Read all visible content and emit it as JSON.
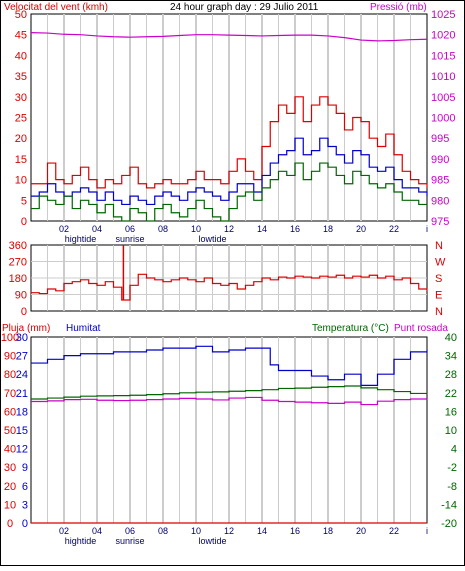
{
  "header": {
    "wind_label": "Velocitat del vent (kmh)",
    "title": "24 hour graph day : 29 Julio 2011",
    "pressure_label": "Pressió (mb)"
  },
  "colors": {
    "red": "#dd0000",
    "blue": "#0000cc",
    "green": "#006600",
    "magenta": "#cc00cc",
    "grid": "#cccccc"
  },
  "chart_data": [
    {
      "type": "line",
      "panel": "wind-pressure",
      "title": "24 hour graph day : 29 Julio 2011",
      "x_ticks": [
        "02",
        "04",
        "06",
        "08",
        "10",
        "12",
        "14",
        "16",
        "18",
        "20",
        "22",
        "i"
      ],
      "x_annotations": [
        {
          "x": 3,
          "label": "hightide"
        },
        {
          "x": 6,
          "label": "sunrise"
        },
        {
          "x": 11,
          "label": "lowtide"
        }
      ],
      "xlim": [
        0,
        24
      ],
      "left_axis": {
        "label": "Velocitat del vent (kmh)",
        "ylim": [
          0,
          50
        ],
        "ticks": [
          0,
          5,
          10,
          15,
          20,
          25,
          30,
          35,
          40,
          45,
          50
        ]
      },
      "right_axis": {
        "label": "Pressió (mb)",
        "ylim": [
          975,
          1025
        ],
        "ticks": [
          975,
          980,
          985,
          990,
          995,
          1000,
          1005,
          1010,
          1015,
          1020,
          1025
        ]
      },
      "series": [
        {
          "color": "#dd0000",
          "axis": "left",
          "x": [
            0,
            0.5,
            1,
            1.5,
            2,
            2.5,
            3,
            3.5,
            4,
            4.5,
            5,
            5.5,
            6,
            6.5,
            7,
            7.5,
            8,
            8.5,
            9,
            9.5,
            10,
            10.5,
            11,
            11.5,
            12,
            12.5,
            13,
            13.5,
            14,
            14.5,
            15,
            15.5,
            16,
            16.5,
            17,
            17.5,
            18,
            18.5,
            19,
            19.5,
            20,
            20.5,
            21,
            21.5,
            22,
            22.5,
            23,
            23.5,
            24
          ],
          "values": [
            9,
            9,
            14,
            10,
            9,
            11,
            13,
            10,
            8,
            10,
            9,
            11,
            13,
            9,
            8,
            9,
            10,
            9,
            9,
            10,
            12,
            10,
            10,
            9,
            12,
            15,
            12,
            10,
            18,
            24,
            28,
            26,
            30,
            24,
            28,
            30,
            28,
            26,
            22,
            25,
            24,
            20,
            18,
            21,
            16,
            12,
            10,
            9,
            8
          ]
        },
        {
          "color": "#0000cc",
          "axis": "left",
          "x": [
            0,
            0.5,
            1,
            1.5,
            2,
            2.5,
            3,
            3.5,
            4,
            4.5,
            5,
            5.5,
            6,
            6.5,
            7,
            7.5,
            8,
            8.5,
            9,
            9.5,
            10,
            10.5,
            11,
            11.5,
            12,
            12.5,
            13,
            13.5,
            14,
            14.5,
            15,
            15.5,
            16,
            16.5,
            17,
            17.5,
            18,
            18.5,
            19,
            19.5,
            20,
            20.5,
            21,
            21.5,
            22,
            22.5,
            23,
            23.5,
            24
          ],
          "values": [
            6,
            7,
            9,
            7,
            6,
            7,
            8,
            7,
            5,
            7,
            5,
            4,
            6,
            5,
            4,
            6,
            7,
            6,
            5,
            7,
            8,
            7,
            6,
            5,
            7,
            9,
            9,
            7,
            11,
            14,
            16,
            17,
            20,
            16,
            17,
            20,
            18,
            16,
            14,
            17,
            16,
            13,
            12,
            13,
            10,
            8,
            8,
            7,
            6
          ]
        },
        {
          "color": "#006600",
          "axis": "left",
          "x": [
            0,
            0.5,
            1,
            1.5,
            2,
            2.5,
            3,
            3.5,
            4,
            4.5,
            5,
            5.5,
            6,
            6.5,
            7,
            7.5,
            8,
            8.5,
            9,
            9.5,
            10,
            10.5,
            11,
            11.5,
            12,
            12.5,
            13,
            13.5,
            14,
            14.5,
            15,
            15.5,
            16,
            16.5,
            17,
            17.5,
            18,
            18.5,
            19,
            19.5,
            20,
            20.5,
            21,
            21.5,
            22,
            22.5,
            23,
            23.5,
            24
          ],
          "values": [
            3,
            6,
            5,
            4,
            6,
            3,
            5,
            4,
            2,
            4,
            1,
            0,
            3,
            2,
            0,
            3,
            4,
            2,
            1,
            3,
            5,
            3,
            1,
            0,
            3,
            6,
            7,
            5,
            8,
            10,
            12,
            11,
            14,
            10,
            12,
            14,
            13,
            11,
            9,
            12,
            11,
            9,
            8,
            9,
            7,
            5,
            5,
            4,
            4
          ]
        },
        {
          "color": "#cc00cc",
          "axis": "right",
          "x": [
            0,
            1,
            2,
            3,
            4,
            5,
            6,
            7,
            8,
            9,
            10,
            11,
            12,
            13,
            14,
            15,
            16,
            17,
            18,
            19,
            20,
            21,
            22,
            23,
            24
          ],
          "values": [
            1020.5,
            1020.4,
            1020.1,
            1020.0,
            1019.7,
            1019.5,
            1019.4,
            1019.5,
            1019.6,
            1019.8,
            1020.0,
            1020.0,
            1019.9,
            1019.8,
            1019.7,
            1019.8,
            1019.9,
            1019.9,
            1019.7,
            1019.3,
            1018.7,
            1018.5,
            1018.6,
            1018.8,
            1018.9
          ]
        }
      ]
    },
    {
      "type": "line",
      "panel": "wind-direction",
      "xlim": [
        0,
        24
      ],
      "left_axis": {
        "ylim": [
          0,
          360
        ],
        "ticks": [
          0,
          90,
          180,
          270,
          360
        ]
      },
      "right_axis": {
        "ticks": [
          "N",
          "W",
          "S",
          "E",
          "N"
        ]
      },
      "series": [
        {
          "color": "#dd0000",
          "x": [
            0,
            0.5,
            1,
            1.5,
            2,
            2.5,
            3,
            3.5,
            4,
            4.5,
            5,
            5.5,
            6,
            6.5,
            7,
            7.5,
            8,
            8.5,
            9,
            9.5,
            10,
            10.5,
            11,
            11.5,
            12,
            12.5,
            13,
            13.5,
            14,
            14.5,
            15,
            15.5,
            16,
            16.5,
            17,
            17.5,
            18,
            18.5,
            19,
            19.5,
            20,
            20.5,
            21,
            21.5,
            22,
            22.5,
            23,
            23.5,
            24
          ],
          "values": [
            100,
            95,
            120,
            110,
            150,
            160,
            170,
            150,
            140,
            160,
            130,
            60,
            140,
            200,
            180,
            170,
            160,
            170,
            180,
            170,
            160,
            180,
            150,
            140,
            150,
            120,
            140,
            160,
            180,
            170,
            185,
            180,
            190,
            185,
            180,
            190,
            185,
            195,
            180,
            190,
            185,
            195,
            180,
            190,
            170,
            180,
            150,
            120,
            110
          ]
        }
      ]
    },
    {
      "type": "line",
      "panel": "rain-humidity-temperature",
      "x_ticks": [
        "02",
        "04",
        "06",
        "08",
        "10",
        "12",
        "14",
        "16",
        "18",
        "20",
        "22",
        "i"
      ],
      "x_annotations": [
        {
          "x": 3,
          "label": "hightide"
        },
        {
          "x": 6,
          "label": "sunrise"
        },
        {
          "x": 11,
          "label": "lowtide"
        }
      ],
      "xlim": [
        0,
        24
      ],
      "left_axis": {
        "label": "Pluja (mm)",
        "ylim": [
          0,
          100
        ],
        "ticks": [
          0,
          10,
          20,
          30,
          40,
          50,
          60,
          70,
          80,
          90,
          100
        ],
        "tick_labels": [
          "0",
          "10",
          "20",
          "30",
          "40",
          "50",
          "60",
          "70",
          "80",
          "90",
          "100"
        ]
      },
      "left_axis_2": {
        "label": "Humitat",
        "ticks": [
          0,
          3,
          6,
          9,
          12,
          15,
          18,
          21,
          24,
          27,
          30
        ],
        "tick_labels": [
          "0",
          "3",
          "6",
          "9",
          "12",
          "15",
          "18",
          "21",
          "24",
          "27",
          "30"
        ]
      },
      "right_axis": {
        "label": "Temperatura (°C)",
        "label2": "Punt rosada",
        "ylim": [
          -20,
          40
        ],
        "ticks": [
          -20,
          -14,
          -8,
          -2,
          4,
          10,
          16,
          22,
          28,
          34,
          40
        ]
      },
      "series": [
        {
          "color": "#0000cc",
          "axis": "left",
          "x": [
            0,
            1,
            2,
            3,
            4,
            5,
            6,
            7,
            8,
            9,
            10,
            11,
            12,
            13,
            14,
            14.5,
            15,
            16,
            17,
            18,
            19,
            20,
            21,
            22,
            23,
            24
          ],
          "values": [
            86,
            88,
            90,
            91,
            91,
            92,
            92,
            93,
            94,
            94,
            95,
            92,
            93,
            94,
            94,
            85,
            82,
            82,
            79,
            77,
            80,
            74,
            80,
            88,
            92,
            93
          ]
        },
        {
          "color": "#006600",
          "axis": "right",
          "x": [
            0,
            1,
            2,
            3,
            4,
            5,
            6,
            7,
            8,
            9,
            10,
            11,
            12,
            13,
            14,
            15,
            16,
            17,
            18,
            19,
            20,
            21,
            22,
            23,
            24
          ],
          "values": [
            20.0,
            20.3,
            20.6,
            20.9,
            21.0,
            21.1,
            21.2,
            21.4,
            21.7,
            22.0,
            22.2,
            22.3,
            22.5,
            22.7,
            23.0,
            23.4,
            23.5,
            23.8,
            24.0,
            24.2,
            23.6,
            23.0,
            22.4,
            21.8,
            21.5
          ]
        },
        {
          "color": "#cc00cc",
          "axis": "right",
          "x": [
            0,
            1,
            2,
            3,
            4,
            5,
            6,
            7,
            8,
            9,
            10,
            11,
            12,
            13,
            14,
            15,
            16,
            17,
            18,
            19,
            20,
            21,
            22,
            23,
            24
          ],
          "values": [
            19.2,
            19.4,
            19.8,
            19.9,
            19.6,
            19.5,
            19.6,
            19.8,
            20.0,
            20.2,
            20.0,
            19.7,
            20.3,
            20.5,
            19.6,
            19.2,
            19.0,
            18.8,
            18.6,
            19.0,
            18.2,
            19.3,
            19.8,
            20.0,
            20.1
          ]
        },
        {
          "color": "#dd0000",
          "axis": "left",
          "x": [
            0,
            24
          ],
          "values": [
            0,
            0
          ]
        }
      ]
    }
  ]
}
